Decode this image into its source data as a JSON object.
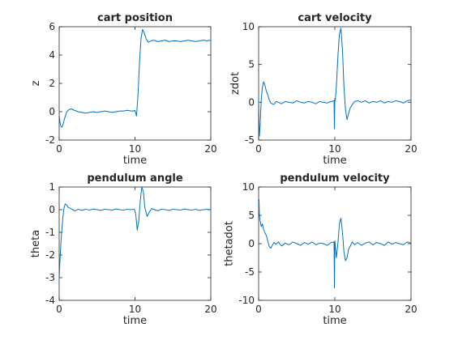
{
  "style": {
    "line_color": "#0072BD",
    "axis_color": "#262626"
  },
  "chart_data": [
    {
      "type": "line",
      "title": "cart position",
      "xlabel": "time",
      "ylabel": "z",
      "xlim": [
        0,
        20
      ],
      "ylim": [
        -2,
        6
      ],
      "xticks": [
        "0",
        "10",
        "20"
      ],
      "yticks": [
        "-2",
        "0",
        "2",
        "4",
        "6"
      ],
      "xtick_values": [
        0,
        10,
        20
      ],
      "ytick_values": [
        -2,
        0,
        2,
        4,
        6
      ],
      "grid": false,
      "x": [
        0,
        0.1,
        0.2,
        0.35,
        0.5,
        0.7,
        1.0,
        1.3,
        1.6,
        2.0,
        2.5,
        3.0,
        3.5,
        4.0,
        4.5,
        5.0,
        5.5,
        6.0,
        6.5,
        7.0,
        7.5,
        8.0,
        8.5,
        9.0,
        9.5,
        9.8,
        10.0,
        10.2,
        10.4,
        10.6,
        10.8,
        11.0,
        11.2,
        11.5,
        11.8,
        12.1,
        12.5,
        13.0,
        13.5,
        14.0,
        14.5,
        15.0,
        15.5,
        16.0,
        16.5,
        17.0,
        17.5,
        18.0,
        18.5,
        19.0,
        19.5,
        20.0
      ],
      "y": [
        -0.2,
        -0.7,
        -1.0,
        -1.1,
        -0.9,
        -0.5,
        0.0,
        0.15,
        0.2,
        0.1,
        0.0,
        -0.05,
        -0.1,
        -0.05,
        0.0,
        -0.05,
        0.0,
        0.05,
        0.0,
        -0.05,
        0.0,
        0.05,
        0.05,
        0.1,
        0.05,
        0.05,
        0.1,
        -0.3,
        1.2,
        3.5,
        5.2,
        5.8,
        5.6,
        5.1,
        4.9,
        5.0,
        5.05,
        4.95,
        5.0,
        5.05,
        4.95,
        5.0,
        5.0,
        4.95,
        5.0,
        5.05,
        5.0,
        4.95,
        5.0,
        5.05,
        5.0,
        5.05
      ]
    },
    {
      "type": "line",
      "title": "cart velocity",
      "xlabel": "time",
      "ylabel": "zdot",
      "xlim": [
        0,
        20
      ],
      "ylim": [
        -5,
        10
      ],
      "xticks": [
        "0",
        "10",
        "20"
      ],
      "yticks": [
        "-5",
        "0",
        "5",
        "10"
      ],
      "xtick_values": [
        0,
        10,
        20
      ],
      "ytick_values": [
        -5,
        0,
        5,
        10
      ],
      "grid": false,
      "x": [
        0,
        0.05,
        0.1,
        0.2,
        0.35,
        0.5,
        0.65,
        0.8,
        1.0,
        1.2,
        1.4,
        1.6,
        1.8,
        2.0,
        2.3,
        2.6,
        3.0,
        3.5,
        4.0,
        4.5,
        5.0,
        5.5,
        6.0,
        6.5,
        7.0,
        7.5,
        8.0,
        8.5,
        9.0,
        9.5,
        9.9,
        9.95,
        10.0,
        10.05,
        10.1,
        10.2,
        10.4,
        10.6,
        10.8,
        11.0,
        11.2,
        11.4,
        11.6,
        11.8,
        12.0,
        12.3,
        12.6,
        13.0,
        13.5,
        14.0,
        14.5,
        15.0,
        15.5,
        16.0,
        16.5,
        17.0,
        17.5,
        18.0,
        18.5,
        19.0,
        19.5,
        20.0
      ],
      "y": [
        0.5,
        -2.5,
        -4.5,
        -3.0,
        0.5,
        2.0,
        2.7,
        2.4,
        1.5,
        1.0,
        0.3,
        -0.1,
        -0.2,
        -0.3,
        0.1,
        0.0,
        -0.2,
        0.1,
        0.0,
        -0.1,
        0.2,
        0.0,
        -0.1,
        0.1,
        0.0,
        -0.2,
        0.1,
        0.0,
        -0.1,
        0.1,
        0.2,
        -3.5,
        0.5,
        0.2,
        0.8,
        2.0,
        6.0,
        9.0,
        9.8,
        7.0,
        2.0,
        -1.0,
        -2.3,
        -1.5,
        -0.8,
        -0.3,
        0.1,
        0.2,
        0.0,
        0.2,
        -0.1,
        0.1,
        0.0,
        0.2,
        -0.1,
        0.1,
        0.0,
        0.2,
        0.1,
        -0.1,
        0.2,
        0.3
      ]
    },
    {
      "type": "line",
      "title": "pendulum angle",
      "xlabel": "time",
      "ylabel": "theta",
      "xlim": [
        0,
        20
      ],
      "ylim": [
        -4,
        1
      ],
      "xticks": [
        "0",
        "10",
        "20"
      ],
      "yticks": [
        "-4",
        "-3",
        "-2",
        "-1",
        "0",
        "1"
      ],
      "xtick_values": [
        0,
        10,
        20
      ],
      "ytick_values": [
        -4,
        -3,
        -2,
        -1,
        0,
        1
      ],
      "grid": false,
      "x": [
        0,
        0.05,
        0.1,
        0.2,
        0.35,
        0.5,
        0.65,
        0.8,
        1.0,
        1.2,
        1.5,
        1.8,
        2.1,
        2.5,
        3.0,
        3.5,
        4.0,
        4.5,
        5.0,
        5.5,
        6.0,
        6.5,
        7.0,
        7.5,
        8.0,
        8.5,
        9.0,
        9.5,
        9.9,
        10.0,
        10.1,
        10.3,
        10.5,
        10.7,
        10.9,
        11.1,
        11.3,
        11.6,
        11.9,
        12.2,
        12.6,
        13.0,
        13.5,
        14.0,
        14.5,
        15.0,
        15.5,
        16.0,
        16.5,
        17.0,
        17.5,
        18.0,
        18.5,
        19.0,
        19.5,
        20.0
      ],
      "y": [
        -3.1,
        -2.6,
        -2.3,
        -1.6,
        -0.9,
        -0.3,
        0.1,
        0.25,
        0.2,
        0.1,
        0.05,
        0.0,
        -0.05,
        0.02,
        -0.03,
        0.02,
        -0.02,
        0.03,
        0.0,
        -0.03,
        0.02,
        0.0,
        -0.02,
        0.03,
        0.0,
        -0.02,
        0.02,
        0.0,
        0.02,
        -0.05,
        -0.2,
        -0.9,
        -0.5,
        0.4,
        1.0,
        0.8,
        0.1,
        -0.3,
        -0.1,
        0.05,
        0.0,
        -0.05,
        0.02,
        0.0,
        -0.03,
        0.02,
        0.0,
        -0.02,
        0.03,
        0.0,
        -0.02,
        0.02,
        -0.03,
        0.0,
        0.02,
        0.0
      ]
    },
    {
      "type": "line",
      "title": "pendulum velocity",
      "xlabel": "time",
      "ylabel": "thetadot",
      "xlim": [
        0,
        20
      ],
      "ylim": [
        -10,
        10
      ],
      "xticks": [
        "0",
        "10",
        "20"
      ],
      "yticks": [
        "-10",
        "-5",
        "0",
        "5",
        "10"
      ],
      "xtick_values": [
        0,
        10,
        20
      ],
      "ytick_values": [
        -10,
        -5,
        0,
        5,
        10
      ],
      "grid": false,
      "x": [
        0,
        0.05,
        0.1,
        0.2,
        0.35,
        0.5,
        0.65,
        0.8,
        1.0,
        1.2,
        1.4,
        1.6,
        1.8,
        2.0,
        2.3,
        2.6,
        3.0,
        3.5,
        4.0,
        4.5,
        5.0,
        5.5,
        6.0,
        6.5,
        7.0,
        7.5,
        8.0,
        8.5,
        9.0,
        9.5,
        9.9,
        9.95,
        10.0,
        10.05,
        10.1,
        10.2,
        10.4,
        10.6,
        10.8,
        11.0,
        11.2,
        11.4,
        11.6,
        11.8,
        12.0,
        12.3,
        12.6,
        13.0,
        13.5,
        14.0,
        14.5,
        15.0,
        15.5,
        16.0,
        16.5,
        17.0,
        17.5,
        18.0,
        18.5,
        19.0,
        19.5,
        20.0
      ],
      "y": [
        6.5,
        7.8,
        5.0,
        4.0,
        3.0,
        3.5,
        2.5,
        2.0,
        1.5,
        0.5,
        -0.5,
        -0.8,
        -0.3,
        0.2,
        -0.1,
        0.3,
        -0.4,
        0.1,
        -0.2,
        0.3,
        0.0,
        -0.3,
        0.2,
        -0.1,
        0.3,
        -0.2,
        0.1,
        0.0,
        -0.3,
        0.2,
        0.3,
        -7.8,
        0.5,
        0.0,
        -1.0,
        -2.5,
        0.0,
        3.5,
        4.5,
        2.0,
        -1.5,
        -3.0,
        -2.5,
        -1.0,
        -0.5,
        0.3,
        -0.2,
        0.2,
        -0.3,
        0.1,
        0.3,
        -0.2,
        0.2,
        0.0,
        -0.3,
        0.3,
        -0.1,
        0.2,
        0.0,
        -0.2,
        0.3,
        0.1
      ]
    }
  ]
}
